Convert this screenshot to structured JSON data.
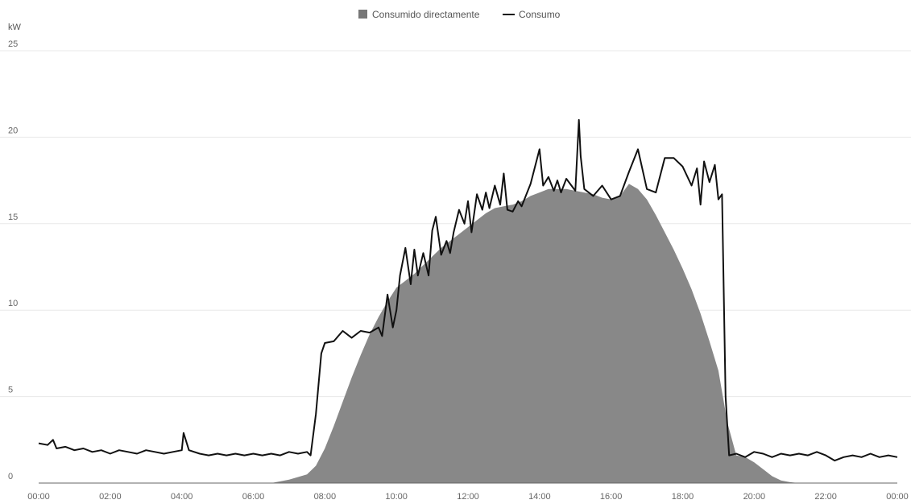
{
  "chart_data": {
    "type": "area",
    "unit_label": "kW",
    "ylim": [
      0,
      25
    ],
    "yticks": [
      "0",
      "5",
      "10",
      "15",
      "20",
      "25"
    ],
    "xlim_hours": [
      0,
      24
    ],
    "xticks": [
      "00:00",
      "02:00",
      "04:00",
      "06:00",
      "08:00",
      "10:00",
      "12:00",
      "14:00",
      "16:00",
      "18:00",
      "20:00",
      "22:00",
      "00:00"
    ],
    "grid": true,
    "legend_position": "top-center",
    "colors": {
      "area": "#888888",
      "area_legend": "#777777",
      "line": "#111111"
    },
    "series": [
      {
        "name": "Consumido directamente",
        "kind": "area",
        "x": [
          0,
          6.5,
          7.0,
          7.5,
          7.75,
          8.0,
          8.25,
          8.5,
          8.75,
          9.0,
          9.25,
          9.5,
          9.75,
          10.0,
          10.25,
          10.5,
          10.75,
          11.0,
          11.25,
          11.5,
          11.75,
          12.0,
          12.25,
          12.5,
          12.75,
          13.0,
          13.25,
          13.5,
          13.75,
          14.0,
          14.25,
          14.5,
          14.75,
          15.0,
          15.25,
          15.5,
          15.75,
          16.0,
          16.25,
          16.5,
          16.75,
          17.0,
          17.25,
          17.5,
          17.75,
          18.0,
          18.25,
          18.5,
          18.75,
          19.0,
          19.25,
          19.5,
          19.75,
          20.0,
          20.25,
          20.5,
          20.75,
          21.0,
          21.25,
          21.5,
          24.0
        ],
        "values": [
          0,
          0,
          0.2,
          0.5,
          1.0,
          2.0,
          3.3,
          4.7,
          6.1,
          7.4,
          8.6,
          9.6,
          10.5,
          11.3,
          11.7,
          12.1,
          12.6,
          13.1,
          13.6,
          14.0,
          14.4,
          14.8,
          15.2,
          15.6,
          15.9,
          16.0,
          16.1,
          16.3,
          16.6,
          16.8,
          17.0,
          17.0,
          17.0,
          16.9,
          16.8,
          16.7,
          16.5,
          16.4,
          16.6,
          17.3,
          17.0,
          16.4,
          15.5,
          14.5,
          13.5,
          12.4,
          11.2,
          9.8,
          8.2,
          6.5,
          3.5,
          1.6,
          1.5,
          1.2,
          0.8,
          0.4,
          0.15,
          0.05,
          0,
          0,
          0
        ]
      },
      {
        "name": "Consumo",
        "kind": "line",
        "x": [
          0,
          0.25,
          0.4,
          0.5,
          0.75,
          1.0,
          1.25,
          1.5,
          1.75,
          2.0,
          2.25,
          2.5,
          2.75,
          3.0,
          3.25,
          3.5,
          3.75,
          4.0,
          4.05,
          4.2,
          4.5,
          4.75,
          5.0,
          5.25,
          5.5,
          5.75,
          6.0,
          6.25,
          6.5,
          6.75,
          7.0,
          7.25,
          7.5,
          7.6,
          7.75,
          7.9,
          8.0,
          8.25,
          8.5,
          8.75,
          9.0,
          9.25,
          9.5,
          9.6,
          9.75,
          9.9,
          10.0,
          10.1,
          10.25,
          10.4,
          10.5,
          10.6,
          10.75,
          10.9,
          11.0,
          11.1,
          11.25,
          11.4,
          11.5,
          11.6,
          11.75,
          11.9,
          12.0,
          12.1,
          12.25,
          12.4,
          12.5,
          12.6,
          12.75,
          12.9,
          13.0,
          13.1,
          13.25,
          13.4,
          13.5,
          13.75,
          14.0,
          14.1,
          14.25,
          14.4,
          14.5,
          14.6,
          14.75,
          15.0,
          15.1,
          15.15,
          15.25,
          15.5,
          15.75,
          16.0,
          16.25,
          16.5,
          16.75,
          17.0,
          17.25,
          17.5,
          17.75,
          18.0,
          18.25,
          18.4,
          18.5,
          18.6,
          18.75,
          18.9,
          19.0,
          19.1,
          19.2,
          19.3,
          19.5,
          19.75,
          20.0,
          20.25,
          20.5,
          20.75,
          21.0,
          21.25,
          21.5,
          21.75,
          22.0,
          22.25,
          22.5,
          22.75,
          23.0,
          23.25,
          23.5,
          23.75,
          24.0
        ],
        "values": [
          2.3,
          2.2,
          2.5,
          2.0,
          2.1,
          1.9,
          2.0,
          1.8,
          1.9,
          1.7,
          1.9,
          1.8,
          1.7,
          1.9,
          1.8,
          1.7,
          1.8,
          1.9,
          2.9,
          1.9,
          1.7,
          1.6,
          1.7,
          1.6,
          1.7,
          1.6,
          1.7,
          1.6,
          1.7,
          1.6,
          1.8,
          1.7,
          1.8,
          1.6,
          4.0,
          7.5,
          8.1,
          8.2,
          8.8,
          8.4,
          8.8,
          8.7,
          9.0,
          8.5,
          10.9,
          9.0,
          10.0,
          12.0,
          13.6,
          11.5,
          13.5,
          12.0,
          13.3,
          12.0,
          14.6,
          15.4,
          13.2,
          14.0,
          13.3,
          14.5,
          15.8,
          15.0,
          16.3,
          14.5,
          16.7,
          15.8,
          16.8,
          15.9,
          17.2,
          16.1,
          17.9,
          15.8,
          15.7,
          16.3,
          16.0,
          17.3,
          19.3,
          17.2,
          17.7,
          16.9,
          17.5,
          16.8,
          17.6,
          16.9,
          21.0,
          18.9,
          17.0,
          16.6,
          17.2,
          16.4,
          16.6,
          18.0,
          19.3,
          17.0,
          16.8,
          18.8,
          18.8,
          18.3,
          17.2,
          18.2,
          16.1,
          18.6,
          17.4,
          18.4,
          16.4,
          16.7,
          5.0,
          1.6,
          1.7,
          1.5,
          1.8,
          1.7,
          1.5,
          1.7,
          1.6,
          1.7,
          1.6,
          1.8,
          1.6,
          1.3,
          1.5,
          1.6,
          1.5,
          1.7,
          1.5,
          1.6,
          1.5
        ]
      }
    ]
  }
}
